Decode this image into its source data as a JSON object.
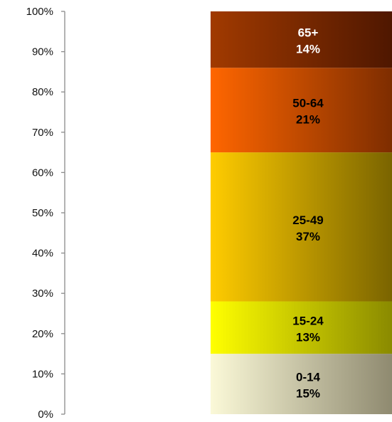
{
  "chart_data": {
    "type": "bar",
    "stacked": true,
    "ylim": [
      0,
      100
    ],
    "y_ticks": [
      "0%",
      "10%",
      "20%",
      "30%",
      "40%",
      "50%",
      "60%",
      "70%",
      "80%",
      "90%",
      "100%"
    ],
    "series": [
      {
        "name": "0-14",
        "value": 15,
        "value_label": "15%",
        "color_start": "#fbf9d8",
        "color_end": "#8f8a70",
        "text_color": "#000000"
      },
      {
        "name": "15-24",
        "value": 13,
        "value_label": "13%",
        "color_start": "#ffff00",
        "color_end": "#8a8a00",
        "text_color": "#000000"
      },
      {
        "name": "25-49",
        "value": 37,
        "value_label": "37%",
        "color_start": "#ffcc00",
        "color_end": "#7a6400",
        "text_color": "#000000"
      },
      {
        "name": "50-64",
        "value": 21,
        "value_label": "21%",
        "color_start": "#ff6600",
        "color_end": "#7e2d00",
        "text_color": "#000000"
      },
      {
        "name": "65+",
        "value": 14,
        "value_label": "14%",
        "color_start": "#a13a00",
        "color_end": "#4f1700",
        "text_color": "#ffffff"
      }
    ]
  }
}
